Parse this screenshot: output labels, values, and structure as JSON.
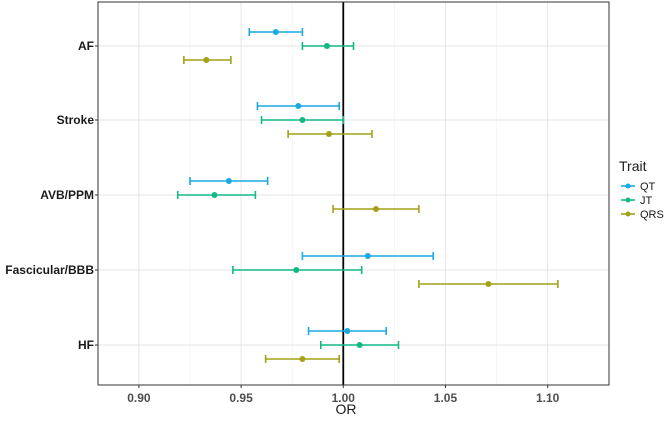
{
  "chart_data": {
    "type": "forest",
    "xlabel": "OR",
    "ylabel": "",
    "xlim": [
      0.88,
      1.13
    ],
    "x_ticks": [
      0.9,
      0.95,
      1.0,
      1.05,
      1.1
    ],
    "x_tick_labels": [
      "0.90",
      "0.95",
      "1.00",
      "1.05",
      "1.10"
    ],
    "reference_line": 1.0,
    "grid": true,
    "categories": [
      "AF",
      "Stroke",
      "AVB/PPM",
      "Fascicular/BBB",
      "HF"
    ],
    "legend": {
      "title": "Trait",
      "position": "right"
    },
    "series": [
      {
        "name": "QT",
        "color": "#1aa9e0",
        "estimates": [
          0.967,
          0.978,
          0.944,
          1.012,
          1.002
        ],
        "lower": [
          0.954,
          0.958,
          0.925,
          0.98,
          0.983
        ],
        "upper": [
          0.98,
          0.998,
          0.963,
          1.044,
          1.021
        ]
      },
      {
        "name": "JT",
        "color": "#12b887",
        "estimates": [
          0.992,
          0.98,
          0.937,
          0.977,
          1.008
        ],
        "lower": [
          0.98,
          0.96,
          0.919,
          0.946,
          0.989
        ],
        "upper": [
          1.005,
          1.0,
          0.957,
          1.009,
          1.027
        ]
      },
      {
        "name": "QRS",
        "color": "#a3a117",
        "estimates": [
          0.933,
          0.993,
          1.016,
          1.071,
          0.98
        ],
        "lower": [
          0.922,
          0.973,
          0.995,
          1.037,
          0.962
        ],
        "upper": [
          0.945,
          1.014,
          1.037,
          1.105,
          0.998
        ]
      }
    ]
  }
}
